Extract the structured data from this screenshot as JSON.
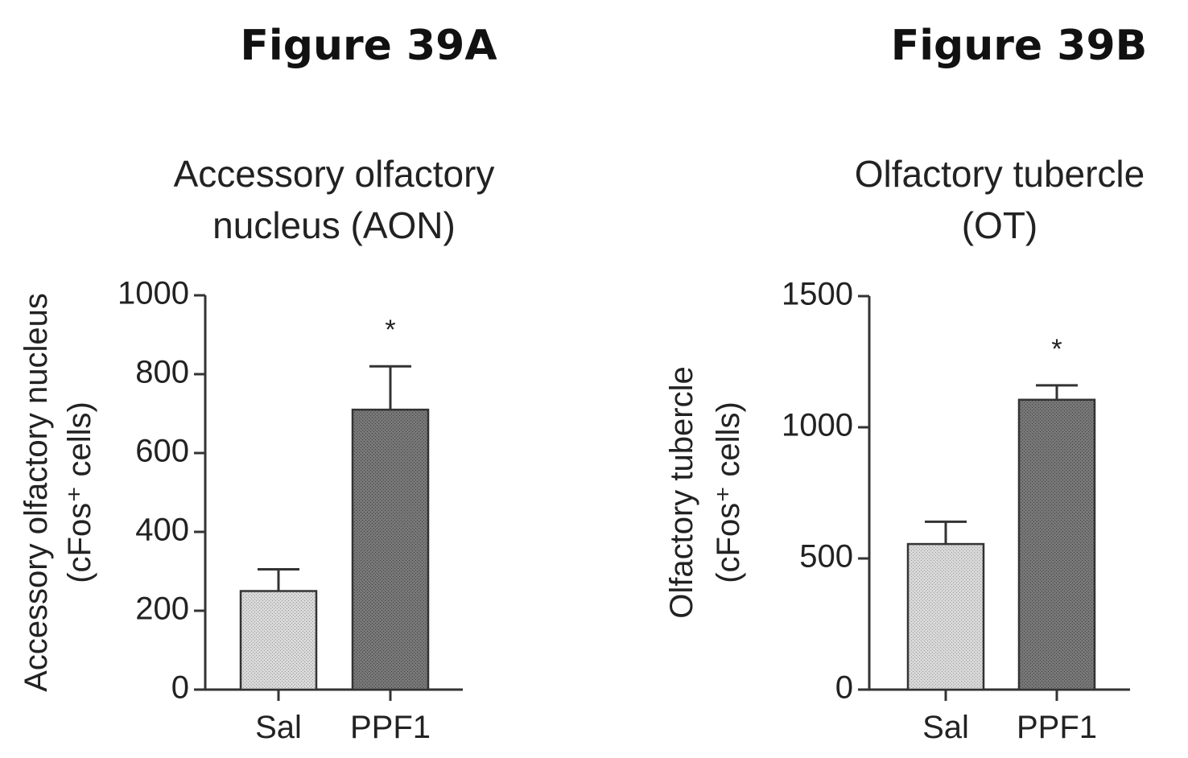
{
  "chart_data": [
    {
      "figure_label": "Figure 39A",
      "type": "bar",
      "title_lines": [
        "Accessory olfactory",
        "nucleus (AON)"
      ],
      "ylabel_lines": [
        "Accessory olfactory nucleus",
        "(cFos⁺ cells)"
      ],
      "categories": [
        "Sal",
        "PPF1"
      ],
      "values": [
        250,
        710
      ],
      "errors": [
        55,
        110
      ],
      "significance": [
        "",
        "*"
      ],
      "ylim": [
        0,
        1000
      ],
      "yticks": [
        0,
        200,
        400,
        600,
        800,
        1000
      ],
      "colors": [
        "#d8d8d8",
        "#777777"
      ],
      "grid": false
    },
    {
      "figure_label": "Figure 39B",
      "type": "bar",
      "title_lines": [
        "Olfactory tubercle",
        "(OT)"
      ],
      "ylabel_lines": [
        "Olfactory tubercle",
        "(cFos⁺ cells)"
      ],
      "categories": [
        "Sal",
        "PPF1"
      ],
      "values": [
        555,
        1105
      ],
      "errors": [
        85,
        55
      ],
      "significance": [
        "",
        "*"
      ],
      "ylim": [
        0,
        1500
      ],
      "yticks": [
        0,
        500,
        1000,
        1500
      ],
      "colors": [
        "#d8d8d8",
        "#777777"
      ],
      "grid": false
    }
  ]
}
